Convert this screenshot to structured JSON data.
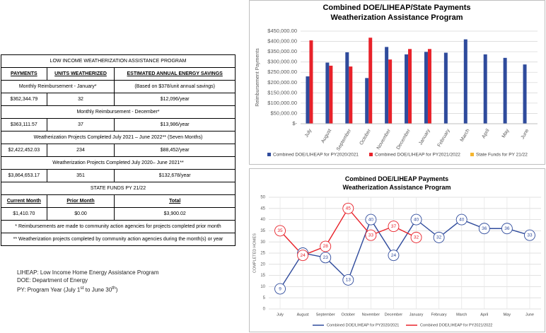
{
  "table": {
    "title": "LOW INCOME WEATHERIZATION ASSISTANCE PROGRAM",
    "header": [
      "PAYMENTS",
      "UNITS WEATHERIZED",
      "ESTIMATED ANNUAL ENERGY SAVINGS"
    ],
    "sections": [
      {
        "label": "Monthly Reimbursement - January*",
        "note": "(Based on $378/unit annual savings)",
        "row": [
          "$362,344.79",
          "32",
          "$12,096/year"
        ]
      },
      {
        "label": "Monthly Reimbursement - December*",
        "row": [
          "$363,111.57",
          "37",
          "$13,986/year"
        ]
      },
      {
        "label": "Weatherization Projects Completed July 2021 – June 2022** (Seven Months)",
        "row": [
          "$2,422,452.03",
          "234",
          "$88,452/year"
        ]
      },
      {
        "label": "Weatherization Projects Completed July 2020– June 2021**",
        "row": [
          "$3,864,653.17",
          "351",
          "$132,678/year"
        ]
      }
    ],
    "state_funds": {
      "label": "STATE FUNDS PY 21/22",
      "header": [
        "Current Month",
        "Prior Month",
        "Total"
      ],
      "row": [
        "$1,410.70",
        "$0.00",
        "$3,900.02"
      ]
    },
    "footnotes": [
      "* Reimbursements are made to community action agencies for projects completed prior month",
      "** Weatherization projects completed by community action agencies during the month(s) or year"
    ]
  },
  "notes": [
    "LIHEAP: Low Income Home Energy Assistance Program",
    "DOE: Department of Energy",
    [
      "PY: Program Year (July 1",
      "st",
      " to June 30",
      "th",
      ")"
    ]
  ],
  "chart_data": [
    {
      "type": "bar",
      "title": "Combined DOE/LIHEAP/State Payments",
      "subtitle": "Weatherization Assistance Program",
      "y_label": "Reimbursement Payments",
      "categories": [
        "July",
        "August",
        "September",
        "October",
        "November",
        "December",
        "January",
        "February",
        "March",
        "April",
        "May",
        "June"
      ],
      "series": [
        {
          "name": "Combined DOE/LIHEAP for PY2020/2021",
          "color": "#2f4b9c",
          "values": [
            230000,
            297000,
            347000,
            222000,
            373000,
            337000,
            349000,
            345000,
            410000,
            337000,
            320000,
            288000
          ]
        },
        {
          "name": "Combined DOE/LIHEAP for PY2021/2022",
          "color": "#e8222a",
          "values": [
            405000,
            282000,
            278000,
            418000,
            312000,
            363000,
            363000,
            null,
            null,
            null,
            null,
            null
          ]
        },
        {
          "name": "State Funds for PY 21/22",
          "color": "#f5b52e",
          "values": [
            null,
            null,
            null,
            null,
            null,
            null,
            null,
            null,
            null,
            null,
            null,
            null
          ]
        }
      ],
      "ylim": [
        0,
        450000
      ],
      "yticks": [
        {
          "value": 0,
          "label": "$-"
        },
        {
          "value": 50000,
          "label": "$50,000.00"
        },
        {
          "value": 100000,
          "label": "$100,000.00"
        },
        {
          "value": 150000,
          "label": "$150,000.00"
        },
        {
          "value": 200000,
          "label": "$200,000.00"
        },
        {
          "value": 250000,
          "label": "$250,000.00"
        },
        {
          "value": 300000,
          "label": "$300,000.00"
        },
        {
          "value": 350000,
          "label": "$350,000.00"
        },
        {
          "value": 400000,
          "label": "$400,000.00"
        },
        {
          "value": 450000,
          "label": "$450,000.00"
        }
      ],
      "grid": true
    },
    {
      "type": "line",
      "title": "Combined DOE/LIHEAP Payments",
      "subtitle": "Weatherization Assistance Program",
      "y_label": "COMPLETED HOMES",
      "categories": [
        "July",
        "August",
        "September",
        "October",
        "November",
        "December",
        "January",
        "February",
        "March",
        "April",
        "May",
        "June"
      ],
      "series": [
        {
          "name": "Combined DOE/LIHEAP for PY2020/2021",
          "color": "#2f4b9c",
          "values": [
            9,
            25,
            23,
            13,
            40,
            24,
            40,
            32,
            40,
            36,
            36,
            33
          ]
        },
        {
          "name": "Combined DOE/LIHEAP for PY2021/2022",
          "color": "#e8222a",
          "values": [
            35,
            24,
            28,
            45,
            33,
            37,
            32,
            null,
            null,
            null,
            null,
            null
          ]
        }
      ],
      "ylim": [
        0,
        50
      ],
      "yticks": [
        0,
        5,
        10,
        15,
        20,
        25,
        30,
        35,
        40,
        45,
        50
      ],
      "grid": true
    }
  ]
}
